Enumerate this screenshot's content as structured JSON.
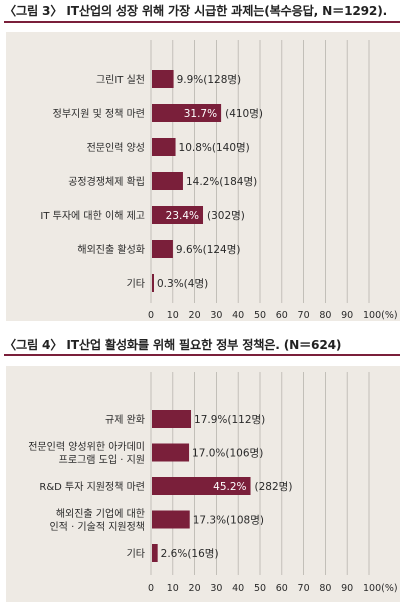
{
  "charts": [
    {
      "title": "〈그림 3〉 IT산업의 성장 위해 가장 시급한 과제는(복수응답, N＝1292).",
      "chart_data": {
        "type": "bar",
        "orientation": "horizontal",
        "categories": [
          "그린IT 실천",
          "정부지원 및  정책 마련",
          "전문인력 양성",
          "공정경쟁체제  확립",
          "IT 투자에  대한 이해 제고",
          "해외진출  활성화",
          "기타"
        ],
        "values": [
          9.9,
          31.7,
          10.8,
          14.2,
          23.4,
          9.6,
          0.3
        ],
        "value_labels": [
          "9.9%(128명)",
          "31.7%",
          "10.8%(140명)",
          "14.2%(184명)",
          "23.4%",
          "9.6%(124명)",
          "0.3%(4명)"
        ],
        "extra_labels": [
          "",
          "(410명)",
          "",
          "",
          "(302명)",
          "",
          ""
        ],
        "label_inside": [
          false,
          true,
          false,
          false,
          true,
          false,
          false
        ],
        "xticks": [
          "0",
          "10",
          "20",
          "30",
          "40",
          "50",
          "60",
          "70",
          "80",
          "90",
          "100(%)"
        ],
        "xlim": [
          0,
          100
        ],
        "grid": true
      }
    },
    {
      "title": "〈그림 4〉 IT산업 활성화를 위해 필요한 정부 정책은. (N＝624)",
      "chart_data": {
        "type": "bar",
        "orientation": "horizontal",
        "categories": [
          "규제 완화",
          "전문인력  양성위한 아카데미\n프로그램 도입 · 지원",
          "R&D  투자 지원정책 마련",
          "해외진출  기업에 대한\n인적 · 기술적 지원정책",
          "기타"
        ],
        "values": [
          17.9,
          17.0,
          45.2,
          17.3,
          2.6
        ],
        "value_labels": [
          "17.9%(112명)",
          "17.0%(106명)",
          "45.2%",
          "17.3%(108명)",
          "2.6%(16명)"
        ],
        "extra_labels": [
          "",
          "",
          "(282명)",
          "",
          ""
        ],
        "label_inside": [
          false,
          false,
          true,
          false,
          false
        ],
        "xticks": [
          "0",
          "10",
          "20",
          "30",
          "40",
          "50",
          "60",
          "70",
          "80",
          "90",
          "100(%)"
        ],
        "xlim": [
          0,
          100
        ],
        "grid": true
      }
    }
  ],
  "colors": {
    "bar": "#7a1f3a",
    "rule": "#7a1f3a",
    "panel": "#eeeae4",
    "grid": "#b8b4ae",
    "text": "#2a2a2a"
  }
}
